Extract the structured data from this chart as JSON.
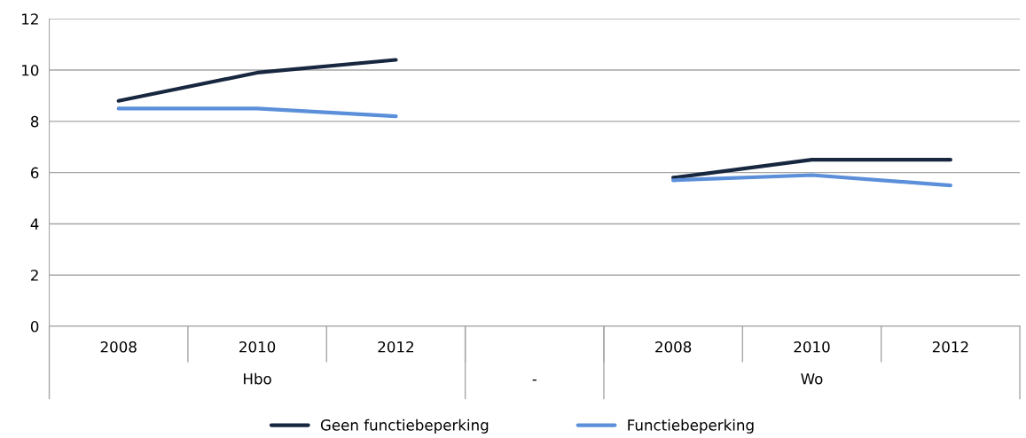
{
  "chart_data": {
    "type": "line",
    "categories": [
      "2008",
      "2010",
      "2012",
      null,
      "2008",
      "2010",
      "2012"
    ],
    "series": [
      {
        "name": "Geen functiebeperking",
        "color": "#17273f",
        "values": [
          8.8,
          9.9,
          10.4,
          null,
          5.8,
          6.5,
          6.5
        ]
      },
      {
        "name": "Functiebeperking",
        "color": "#5b8fd9",
        "values": [
          8.5,
          8.5,
          8.2,
          null,
          5.7,
          5.9,
          5.5
        ]
      }
    ],
    "annotations": [
      "Hbo",
      "-",
      "Wo"
    ],
    "ylim": [
      0,
      12
    ],
    "yticks": [
      0,
      2,
      4,
      6,
      8,
      10,
      12
    ],
    "grid": "y",
    "legend": "bottom",
    "marker": "none",
    "line_style": "solid"
  }
}
